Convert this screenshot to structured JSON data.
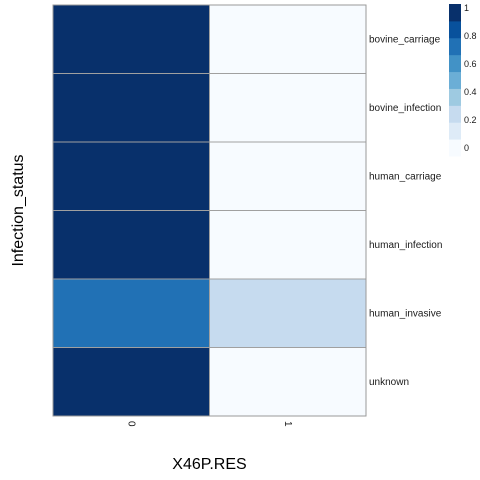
{
  "chart_data": {
    "type": "heatmap",
    "xlabel": "X46P.RES",
    "ylabel": "Infection_status",
    "x_categories": [
      "0",
      "1"
    ],
    "y_categories": [
      "bovine_carriage",
      "bovine_infection",
      "human_carriage",
      "human_infection",
      "human_invasive",
      "unknown"
    ],
    "values": [
      [
        1.0,
        0.0
      ],
      [
        1.0,
        0.0
      ],
      [
        1.0,
        0.0
      ],
      [
        1.0,
        0.0
      ],
      [
        0.75,
        0.25
      ],
      [
        1.0,
        0.0
      ]
    ],
    "color_scale": {
      "min": 0,
      "max": 1,
      "colors": [
        "#f7fbff",
        "#deebf7",
        "#c6dbef",
        "#9ecae1",
        "#6baed6",
        "#4292c6",
        "#2171b5",
        "#08519c",
        "#08306b"
      ],
      "breaks": [
        0,
        0.2,
        0.4,
        0.6,
        0.8,
        1
      ]
    },
    "legend": {
      "position": "top-right",
      "ticks": [
        "0",
        "0.2",
        "0.4",
        "0.6",
        "0.8",
        "1"
      ]
    },
    "grid": false
  }
}
